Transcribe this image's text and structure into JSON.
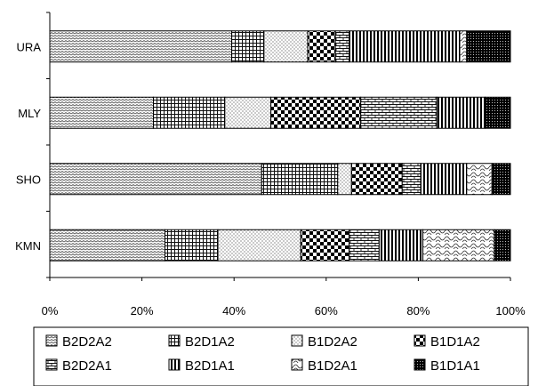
{
  "chart_data": {
    "type": "bar",
    "orientation": "horizontal",
    "stacked": true,
    "percent": true,
    "categories": [
      "URA",
      "MLY",
      "SHO",
      "KMN"
    ],
    "series": [
      {
        "name": "B2D2A2",
        "values": [
          39.5,
          22.5,
          46,
          25
        ],
        "pattern": "zigzag"
      },
      {
        "name": "B2D1A2",
        "values": [
          7,
          15.5,
          16.5,
          11.5
        ],
        "pattern": "grid"
      },
      {
        "name": "B1D2A2",
        "values": [
          9.5,
          10,
          3,
          18
        ],
        "pattern": "dots"
      },
      {
        "name": "B1D1A2",
        "values": [
          6,
          19.5,
          11,
          10.5
        ],
        "pattern": "checker"
      },
      {
        "name": "B2D2A1",
        "values": [
          3,
          16.5,
          4,
          6.5
        ],
        "pattern": "brick"
      },
      {
        "name": "B2D1A1",
        "values": [
          24,
          10.5,
          10,
          9.5
        ],
        "pattern": "vlines"
      },
      {
        "name": "B1D2A1",
        "values": [
          1.5,
          0,
          5.5,
          15.5
        ],
        "pattern": "waves"
      },
      {
        "name": "B1D1A1",
        "values": [
          9.5,
          5.5,
          4,
          3.5
        ],
        "pattern": "darkdots"
      }
    ],
    "xaxis": {
      "ticks": [
        "0%",
        "20%",
        "40%",
        "60%",
        "80%",
        "100%"
      ],
      "range": [
        0,
        100
      ]
    },
    "legend": {
      "position": "bottom",
      "columns": 4
    },
    "grid": false
  }
}
